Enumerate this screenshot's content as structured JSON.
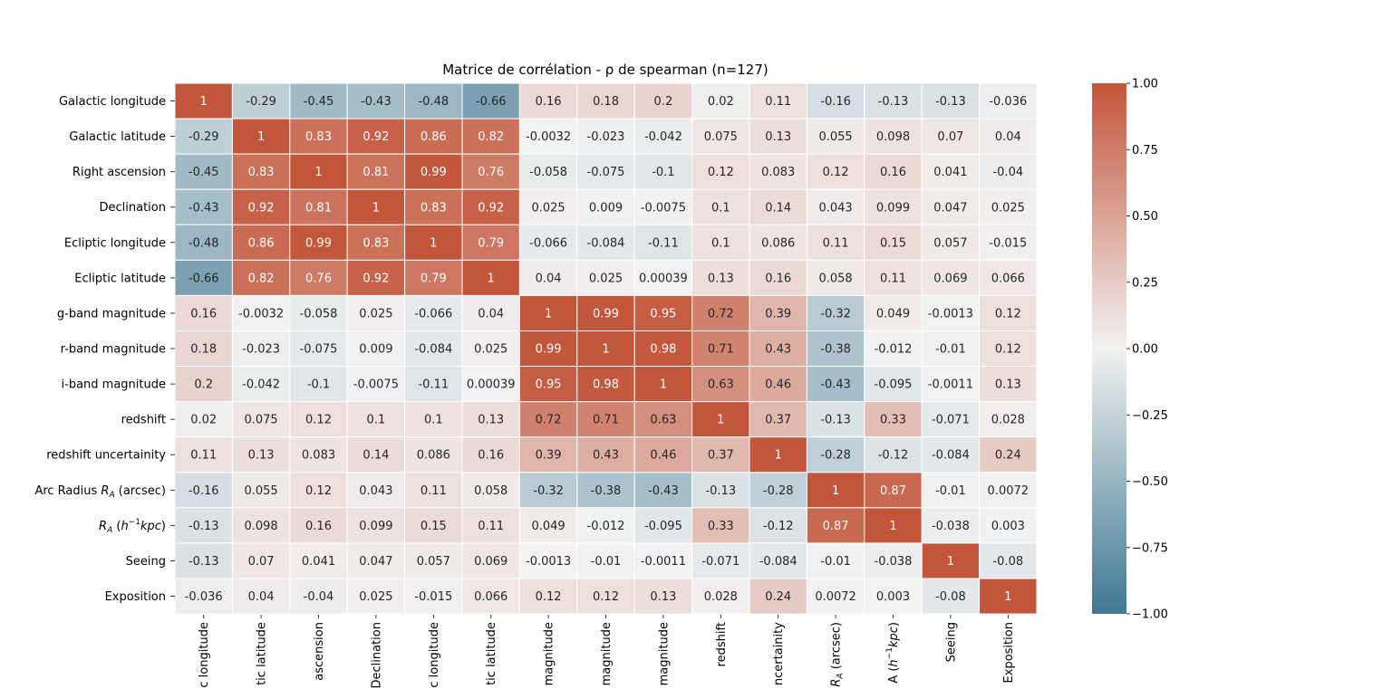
{
  "chart_data": {
    "type": "heatmap",
    "title": "Matrice de corrélation - ρ de spearman (n=127)",
    "xlabel": "",
    "ylabel": "",
    "labels": [
      "Galactic longitude",
      "Galactic latitude",
      "Right ascension",
      "Declination",
      "Ecliptic longitude",
      "Ecliptic latitude",
      "g-band magnitude",
      "r-band magnitude",
      "i-band magnitude",
      "redshift",
      "redshift uncertainity",
      "Arc Radius R_A (arcsec)",
      "R_A (h^-1 kpc)",
      "Seeing",
      "Exposition"
    ],
    "x_tick_labels_visible": [
      "c longitude",
      "tic latitude",
      "ascension",
      "Declination",
      "c longitude",
      "tic latitude",
      "magnitude",
      "magnitude",
      "magnitude",
      "redshift",
      "ncertainity",
      "R_A (arcsec)",
      "A (h^-1 kpc)",
      "Seeing",
      "Exposition"
    ],
    "matrix": [
      [
        "1",
        "-0.29",
        "-0.45",
        "-0.43",
        "-0.48",
        "-0.66",
        "0.16",
        "0.18",
        "0.2",
        "0.02",
        "0.11",
        "-0.16",
        "-0.13",
        "-0.13",
        "-0.036"
      ],
      [
        "-0.29",
        "1",
        "0.83",
        "0.92",
        "0.86",
        "0.82",
        "-0.0032",
        "-0.023",
        "-0.042",
        "0.075",
        "0.13",
        "0.055",
        "0.098",
        "0.07",
        "0.04"
      ],
      [
        "-0.45",
        "0.83",
        "1",
        "0.81",
        "0.99",
        "0.76",
        "-0.058",
        "-0.075",
        "-0.1",
        "0.12",
        "0.083",
        "0.12",
        "0.16",
        "0.041",
        "-0.04"
      ],
      [
        "-0.43",
        "0.92",
        "0.81",
        "1",
        "0.83",
        "0.92",
        "0.025",
        "0.009",
        "-0.0075",
        "0.1",
        "0.14",
        "0.043",
        "0.099",
        "0.047",
        "0.025"
      ],
      [
        "-0.48",
        "0.86",
        "0.99",
        "0.83",
        "1",
        "0.79",
        "-0.066",
        "-0.084",
        "-0.11",
        "0.1",
        "0.086",
        "0.11",
        "0.15",
        "0.057",
        "-0.015"
      ],
      [
        "-0.66",
        "0.82",
        "0.76",
        "0.92",
        "0.79",
        "1",
        "0.04",
        "0.025",
        "0.00039",
        "0.13",
        "0.16",
        "0.058",
        "0.11",
        "0.069",
        "0.066"
      ],
      [
        "0.16",
        "-0.0032",
        "-0.058",
        "0.025",
        "-0.066",
        "0.04",
        "1",
        "0.99",
        "0.95",
        "0.72",
        "0.39",
        "-0.32",
        "0.049",
        "-0.0013",
        "0.12"
      ],
      [
        "0.18",
        "-0.023",
        "-0.075",
        "0.009",
        "-0.084",
        "0.025",
        "0.99",
        "1",
        "0.98",
        "0.71",
        "0.43",
        "-0.38",
        "-0.012",
        "-0.01",
        "0.12"
      ],
      [
        "0.2",
        "-0.042",
        "-0.1",
        "-0.0075",
        "-0.11",
        "0.00039",
        "0.95",
        "0.98",
        "1",
        "0.63",
        "0.46",
        "-0.43",
        "-0.095",
        "-0.0011",
        "0.13"
      ],
      [
        "0.02",
        "0.075",
        "0.12",
        "0.1",
        "0.1",
        "0.13",
        "0.72",
        "0.71",
        "0.63",
        "1",
        "0.37",
        "-0.13",
        "0.33",
        "-0.071",
        "0.028"
      ],
      [
        "0.11",
        "0.13",
        "0.083",
        "0.14",
        "0.086",
        "0.16",
        "0.39",
        "0.43",
        "0.46",
        "0.37",
        "1",
        "-0.28",
        "-0.12",
        "-0.084",
        "0.24"
      ],
      [
        "-0.16",
        "0.055",
        "0.12",
        "0.043",
        "0.11",
        "0.058",
        "-0.32",
        "-0.38",
        "-0.43",
        "-0.13",
        "-0.28",
        "1",
        "0.87",
        "-0.01",
        "0.0072"
      ],
      [
        "-0.13",
        "0.098",
        "0.16",
        "0.099",
        "0.15",
        "0.11",
        "0.049",
        "-0.012",
        "-0.095",
        "0.33",
        "-0.12",
        "0.87",
        "1",
        "-0.038",
        "0.003"
      ],
      [
        "-0.13",
        "0.07",
        "0.041",
        "0.047",
        "0.057",
        "0.069",
        "-0.0013",
        "-0.01",
        "-0.0011",
        "-0.071",
        "-0.084",
        "-0.01",
        "-0.038",
        "1",
        "-0.08"
      ],
      [
        "-0.036",
        "0.04",
        "-0.04",
        "0.025",
        "-0.015",
        "0.066",
        "0.12",
        "0.12",
        "0.13",
        "0.028",
        "0.24",
        "0.0072",
        "0.003",
        "-0.08",
        "1"
      ]
    ],
    "vmin": -1,
    "vmax": 1,
    "colorbar": {
      "ticks": [
        "1.00",
        "0.75",
        "0.50",
        "0.25",
        "0.00",
        "−0.25",
        "−0.50",
        "−0.75",
        "−1.00"
      ],
      "tick_values": [
        1,
        0.75,
        0.5,
        0.25,
        0,
        -0.25,
        -0.5,
        -0.75,
        -1
      ],
      "colors": {
        "negative": "#3e7891",
        "center": "#f2f2f2",
        "positive": "#c3553a"
      },
      "placement": "right"
    },
    "grid": false
  }
}
